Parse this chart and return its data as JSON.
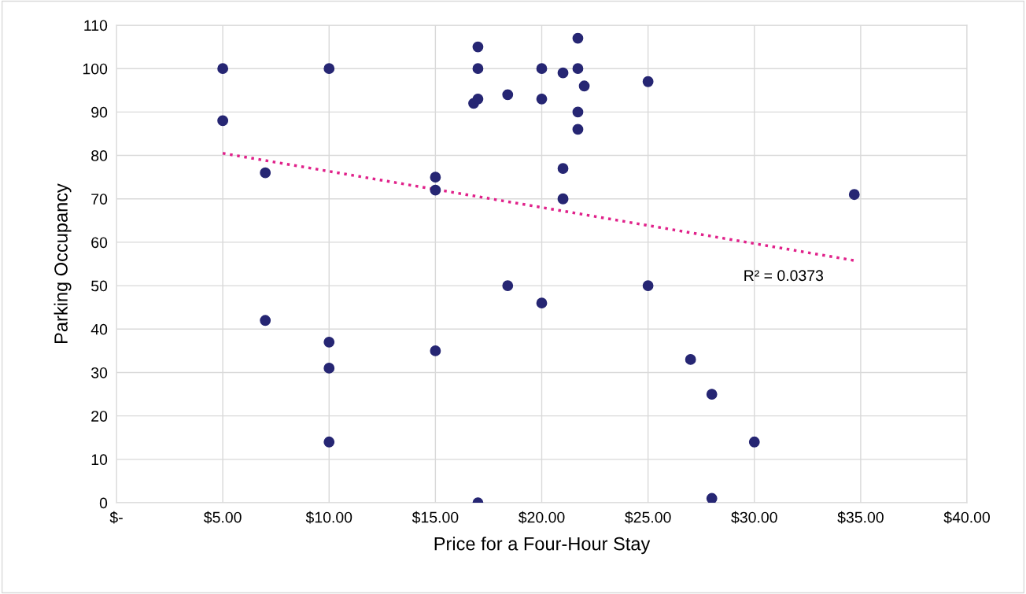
{
  "chart_data": {
    "type": "scatter",
    "xlabel": "Price for a Four-Hour Stay",
    "ylabel": "Parking Occupancy",
    "xlim": [
      0,
      40
    ],
    "xticks": [
      {
        "value": 0,
        "label": "$-"
      },
      {
        "value": 5,
        "label": "$5.00"
      },
      {
        "value": 10,
        "label": "$10.00"
      },
      {
        "value": 15,
        "label": "$15.00"
      },
      {
        "value": 20,
        "label": "$20.00"
      },
      {
        "value": 25,
        "label": "$25.00"
      },
      {
        "value": 30,
        "label": "$30.00"
      },
      {
        "value": 35,
        "label": "$35.00"
      },
      {
        "value": 40,
        "label": "$40.00"
      }
    ],
    "ylim": [
      0,
      110
    ],
    "yticks": [
      0,
      10,
      20,
      30,
      40,
      50,
      60,
      70,
      80,
      90,
      100,
      110
    ],
    "grid": true,
    "legend": false,
    "series": [
      {
        "color": "#262673",
        "marker": "circle",
        "x": [
          5,
          5,
          7,
          7,
          10,
          10,
          10,
          10,
          15,
          15,
          15,
          16.8,
          17,
          17,
          17,
          17,
          18.4,
          18.4,
          20,
          20,
          20,
          21,
          21,
          21,
          21.7,
          21.7,
          21.7,
          21.7,
          22,
          25,
          25,
          27,
          28,
          28,
          30,
          34.7
        ],
        "values": [
          100,
          88,
          76,
          42,
          100,
          37,
          31,
          14,
          75,
          72,
          35,
          92,
          93,
          100,
          105,
          0,
          94,
          50,
          100,
          93,
          46,
          99,
          77,
          70,
          107,
          100,
          90,
          86,
          96,
          97,
          50,
          33,
          25,
          1,
          14,
          71
        ]
      },
      {
        "type": "line",
        "color": "#e0218a",
        "line_style": "dotted",
        "marker": "none",
        "x": [
          5,
          34.7
        ],
        "values": [
          80.5,
          55.8
        ]
      }
    ],
    "annotations": [
      "R² = 0.0373"
    ]
  }
}
